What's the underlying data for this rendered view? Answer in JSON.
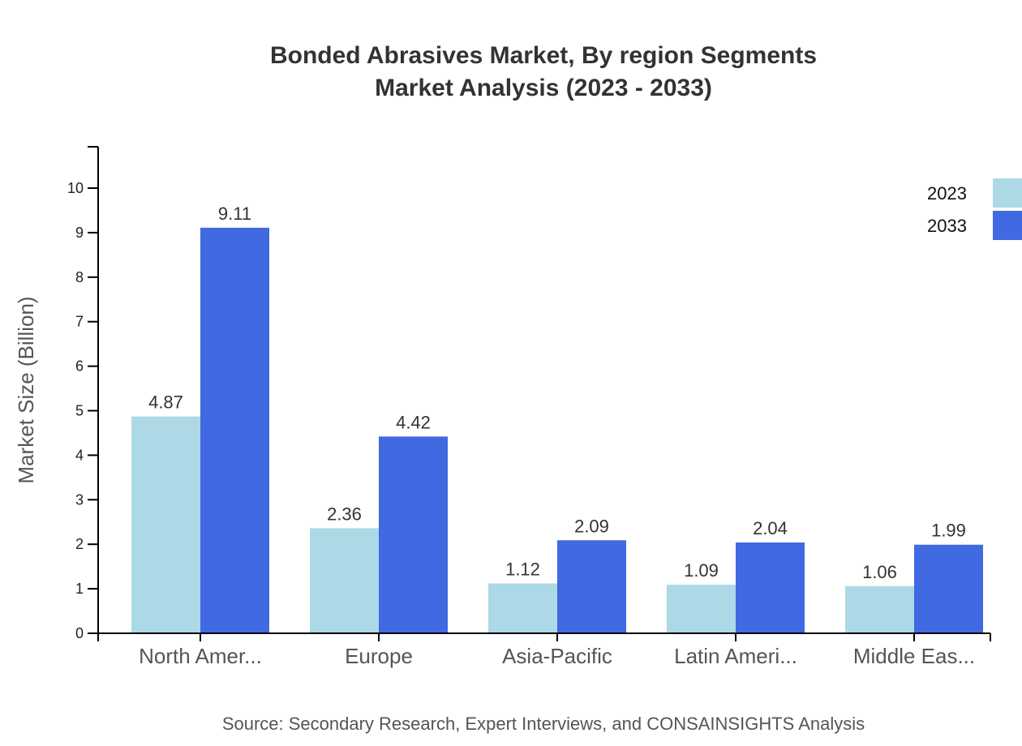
{
  "title": {
    "line1": "Bonded Abrasives Market, By region Segments",
    "line2": "Market Analysis (2023 - 2033)"
  },
  "axes": {
    "ylabel": "Market Size (Billion)",
    "yticks": [
      "0",
      "1",
      "2",
      "3",
      "4",
      "5",
      "6",
      "7",
      "8",
      "9",
      "10"
    ]
  },
  "legend": {
    "items": [
      {
        "label": "2023",
        "color": "#add8e6"
      },
      {
        "label": "2033",
        "color": "#4169e1"
      }
    ]
  },
  "source": "Source: Secondary Research, Expert Interviews, and CONSAINSIGHTS Analysis",
  "chart_data": {
    "type": "bar",
    "title": "Bonded Abrasives Market, By region Segments Market Analysis (2023 - 2033)",
    "xlabel": "",
    "ylabel": "Market Size (Billion)",
    "ylim": [
      0,
      10.93
    ],
    "grid": false,
    "legend_position": "top-right",
    "categories": [
      "North Amer...",
      "Europe",
      "Asia-Pacific",
      "Latin Ameri...",
      "Middle Eas..."
    ],
    "series": [
      {
        "name": "2023",
        "color": "#add8e6",
        "values": [
          4.87,
          2.36,
          1.12,
          1.09,
          1.06
        ]
      },
      {
        "name": "2033",
        "color": "#4169e1",
        "values": [
          9.11,
          4.42,
          2.09,
          2.04,
          1.99
        ]
      }
    ]
  }
}
